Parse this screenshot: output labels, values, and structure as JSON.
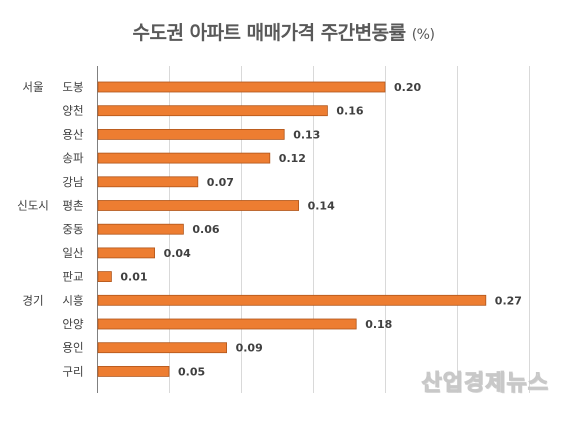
{
  "title": "수도권 아파트 매매가격 주간변동률",
  "title_unit": "(%)",
  "watermark": "산업경제뉴스",
  "colors": {
    "bar": "#ED7D31",
    "bar_edge": "#B0551B",
    "grid": "#d9d9d9",
    "axis": "#808080",
    "text": "#404040"
  },
  "chart_data": {
    "type": "bar",
    "orientation": "horizontal",
    "title": "수도권 아파트 매매가격 주간변동률 (%)",
    "xlim": [
      0,
      0.3
    ],
    "grid": true,
    "groups": [
      {
        "name": "서울",
        "start_index": 0
      },
      {
        "name": "신도시",
        "start_index": 5
      },
      {
        "name": "경기",
        "start_index": 9
      }
    ],
    "categories": [
      "도봉",
      "양천",
      "용산",
      "송파",
      "강남",
      "평촌",
      "중동",
      "일산",
      "판교",
      "시흥",
      "안양",
      "용인",
      "구리"
    ],
    "values": [
      0.2,
      0.16,
      0.13,
      0.12,
      0.07,
      0.14,
      0.06,
      0.04,
      0.01,
      0.27,
      0.18,
      0.09,
      0.05
    ],
    "value_labels": [
      "0.20",
      "0.16",
      "0.13",
      "0.12",
      "0.07",
      "0.14",
      "0.06",
      "0.04",
      "0.01",
      "0.27",
      "0.18",
      "0.09",
      "0.05"
    ]
  }
}
